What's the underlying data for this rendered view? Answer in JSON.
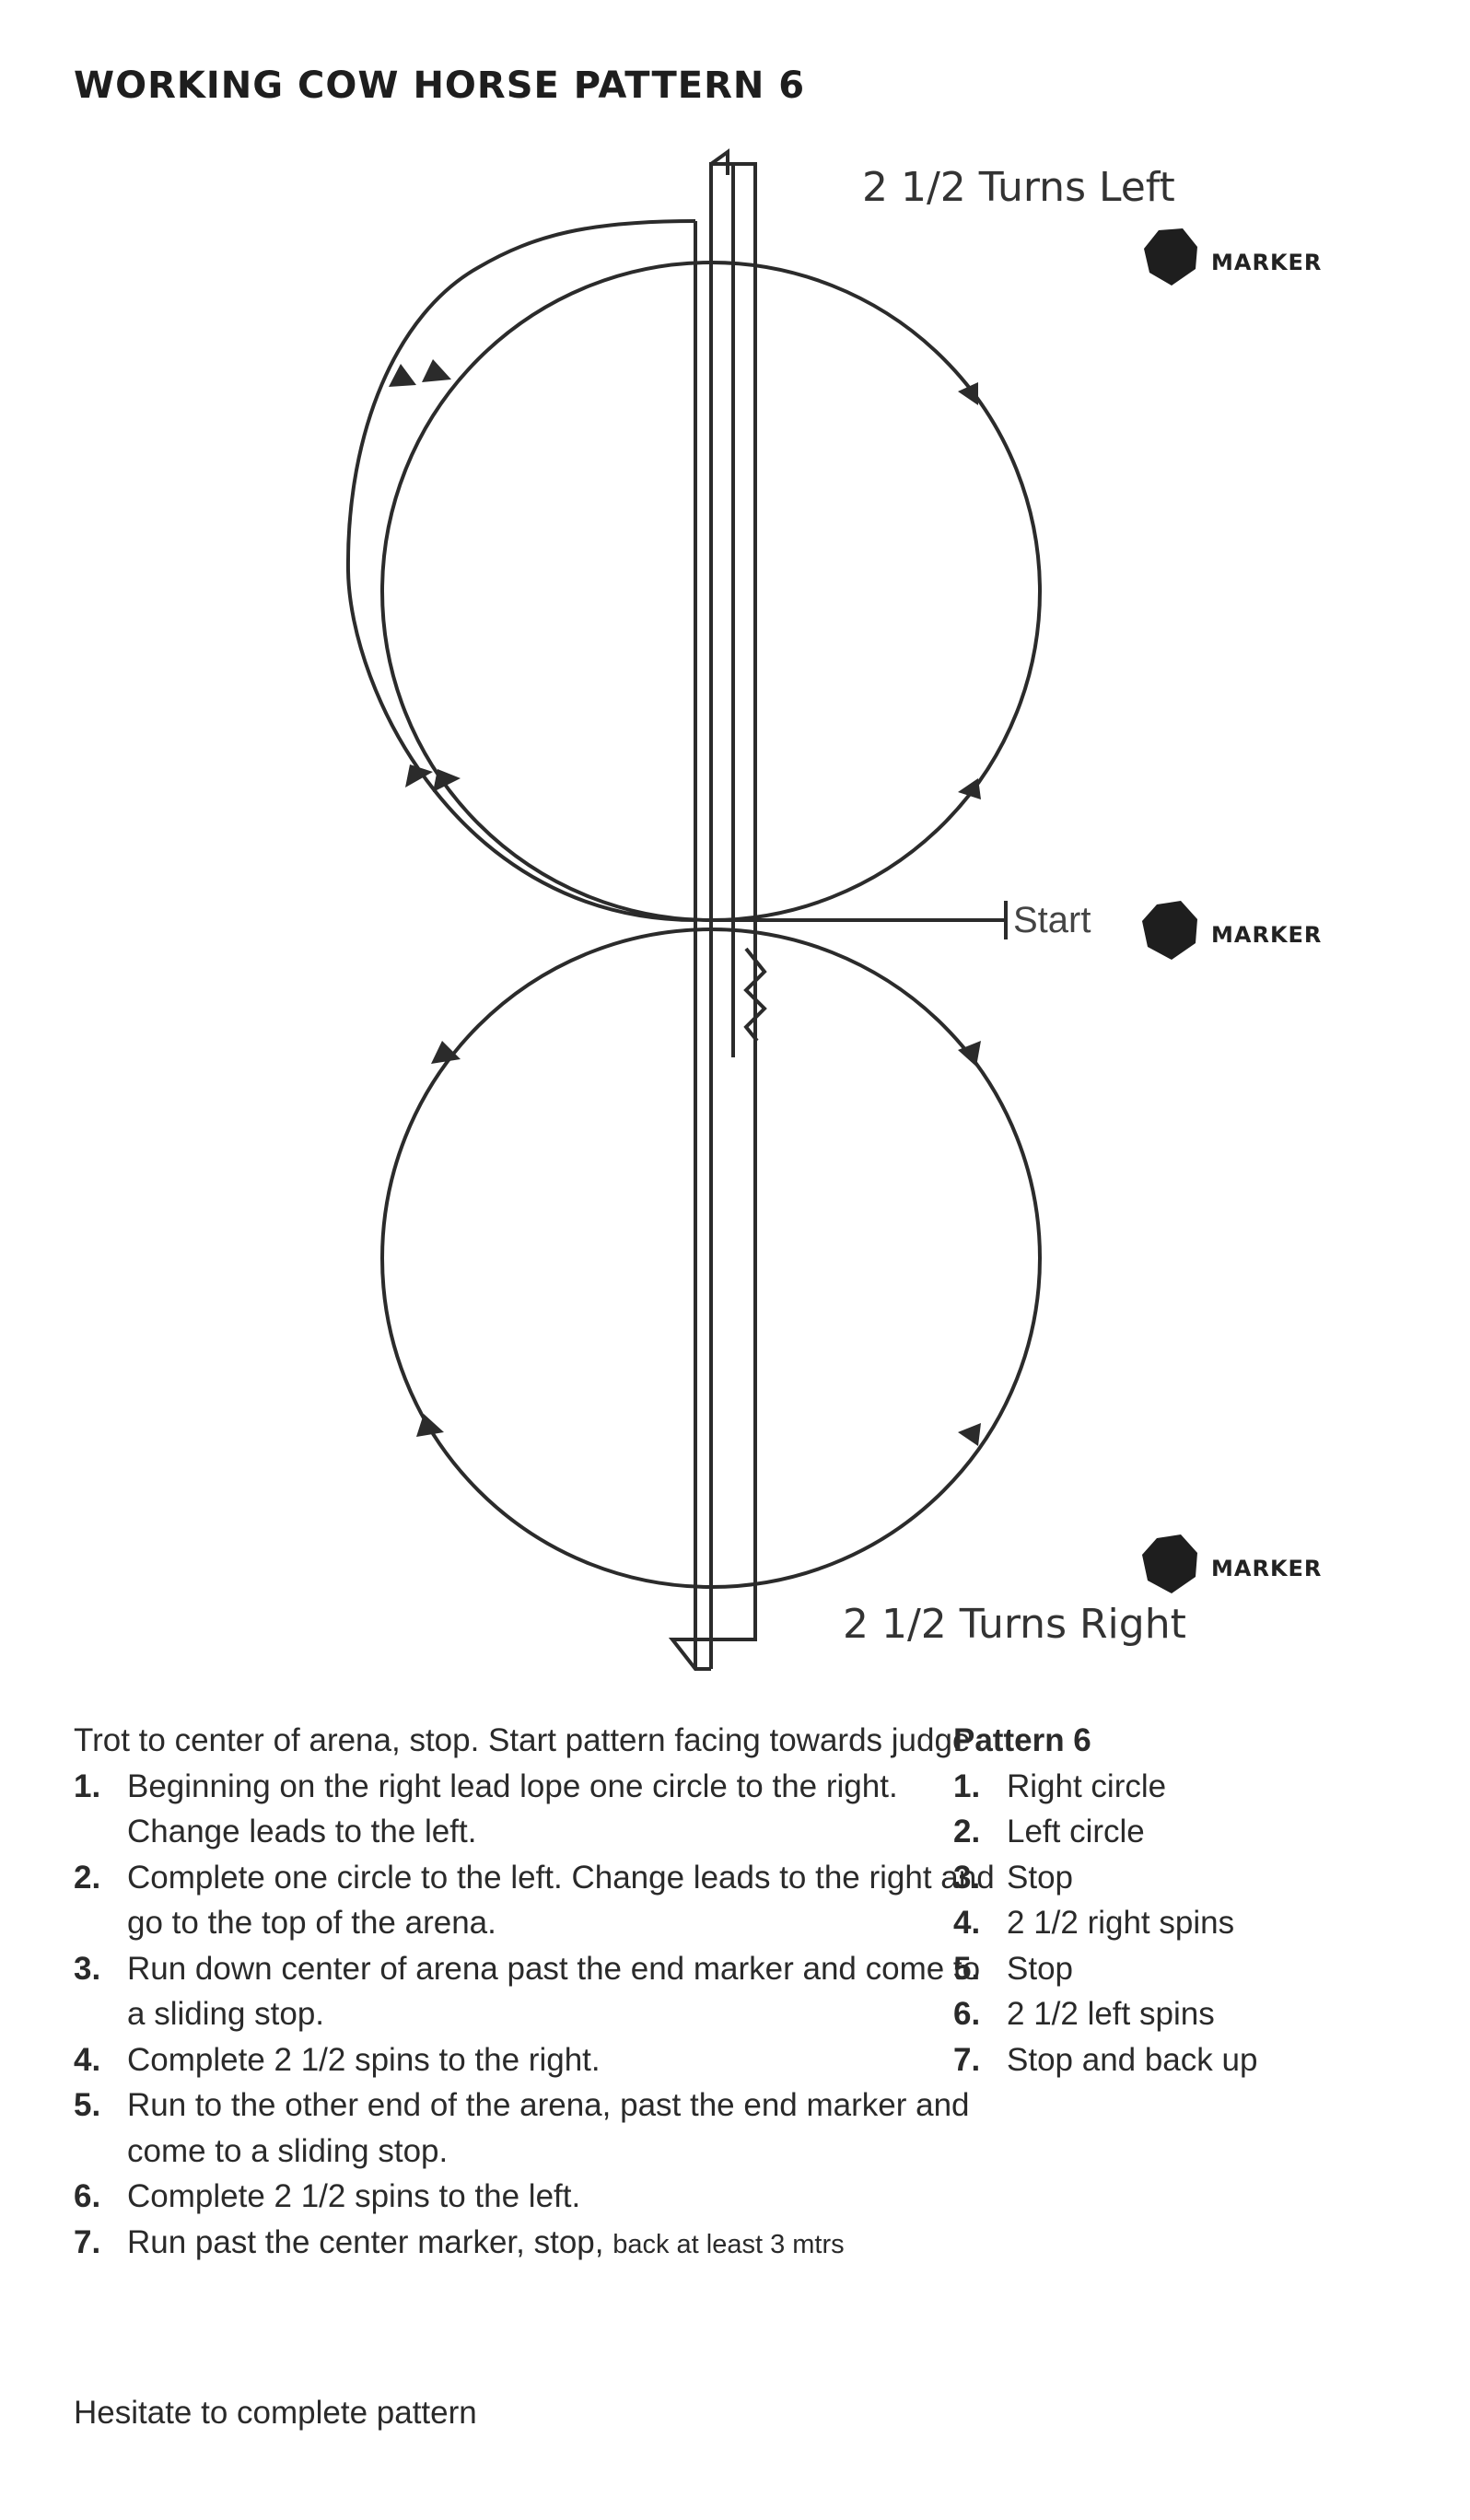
{
  "title": "WORKING COW HORSE PATTERN 6",
  "diagram": {
    "top_caption": "2 1/2 Turns Left",
    "bottom_caption": "2 1/2 Turns Right",
    "start_label": "Start",
    "marker_label": "MARKER",
    "marker_icon": "hexagon-marker-icon",
    "line_color": "#2b2b2b"
  },
  "instructions": {
    "intro": "Trot to center of arena, stop. Start pattern facing towards judge",
    "steps": [
      {
        "num": "1.",
        "text": "Beginning on the right lead lope one circle to the right. Change leads to the left."
      },
      {
        "num": "2.",
        "text": "Complete one circle to the left. Change leads to the right and go to the top of the arena."
      },
      {
        "num": "3.",
        "text": "Run down center of arena past the end marker and come to a sliding stop."
      },
      {
        "num": "4.",
        "text": "Complete 2 1/2 spins to the right."
      },
      {
        "num": "5.",
        "text": "Run to the other end of the arena, past the end marker and come to a sliding stop."
      },
      {
        "num": "6.",
        "text": "Complete 2 1/2 spins to the left."
      },
      {
        "num": "7.",
        "text": "Run past the center marker, stop,",
        "extra": "back at least 3 mtrs"
      }
    ]
  },
  "summary": {
    "heading": "Pattern 6",
    "items": [
      {
        "num": "1.",
        "text": "Right circle"
      },
      {
        "num": "2.",
        "text": "Left circle"
      },
      {
        "num": "3.",
        "text": "Stop"
      },
      {
        "num": "4.",
        "text": "2 1/2 right spins"
      },
      {
        "num": "5.",
        "text": "Stop"
      },
      {
        "num": "6.",
        "text": "2 1/2 left spins"
      },
      {
        "num": "7.",
        "text": "Stop and back up"
      }
    ]
  },
  "footer": "Hesitate to complete pattern"
}
